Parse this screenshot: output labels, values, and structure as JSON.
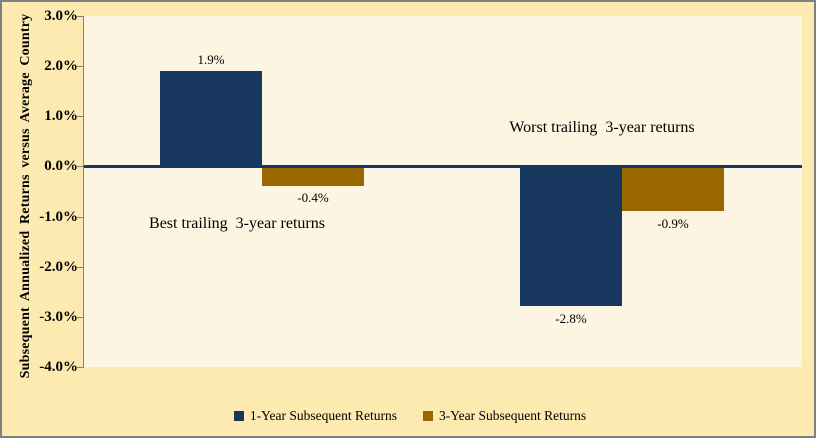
{
  "chart_data": {
    "type": "bar",
    "title": "",
    "ylabel": "Subsequent Annualized Returns versus Average Country",
    "xlabel": "",
    "ylim": [
      -4.0,
      3.0
    ],
    "yticks": [
      "3.0%",
      "2.0%",
      "1.0%",
      "0.0%",
      "-1.0%",
      "-2.0%",
      "-3.0%",
      "-4.0%"
    ],
    "ytick_values": [
      3.0,
      2.0,
      1.0,
      0.0,
      -1.0,
      -2.0,
      -3.0,
      -4.0
    ],
    "grid": false,
    "legend_position": "bottom",
    "categories": [
      "Best trailing  3-year returns",
      "Worst trailing  3-year returns"
    ],
    "series": [
      {
        "name": "1-Year Subsequent Returns",
        "color": "#17375E",
        "values": [
          1.9,
          -2.8
        ],
        "data_labels": [
          "1.9%",
          "-2.8%"
        ]
      },
      {
        "name": "3-Year Subsequent Returns",
        "color": "#996600",
        "values": [
          -0.4,
          -0.9
        ],
        "data_labels": [
          "-0.4%",
          "-0.9%"
        ]
      }
    ],
    "zero_line_color": "#17375E"
  },
  "colors": {
    "outer_background": "#FDEAB0",
    "plot_background": "#FCF5E1",
    "axis": "#808080",
    "border": "#808080",
    "text": "#000000",
    "navy": "#17375E",
    "gold": "#996600"
  }
}
